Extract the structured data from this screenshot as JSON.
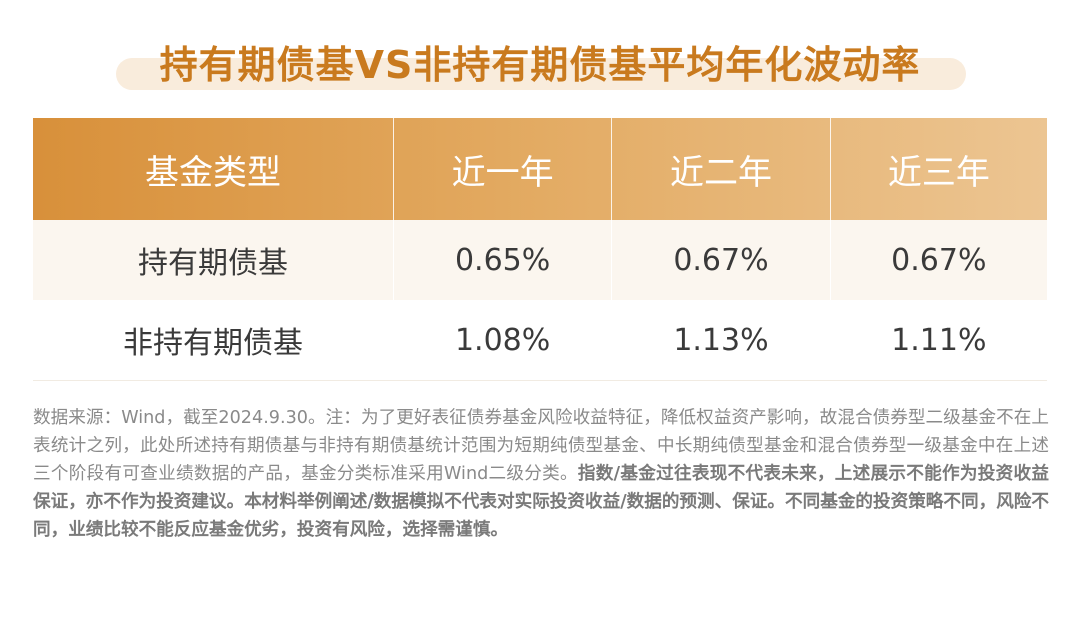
{
  "title": "持有期债基VS非持有期债基平均年化波动率",
  "chart_data": {
    "type": "table",
    "title": "持有期债基VS非持有期债基平均年化波动率",
    "columns": [
      "基金类型",
      "近一年",
      "近二年",
      "近三年"
    ],
    "rows": [
      {
        "label": "持有期债基",
        "values": [
          "0.65%",
          "0.67%",
          "0.67%"
        ]
      },
      {
        "label": "非持有期债基",
        "values": [
          "1.08%",
          "1.13%",
          "1.11%"
        ]
      }
    ]
  },
  "notes": {
    "source": "数据来源：Wind，截至2024.9.30。注：为了更好表征债券基金风险收益特征，降低权益资产影响，故混合债券型二级基金不在上表统计之列，此处所述持有期债基与非持有期债基统计范围为短期纯债型基金、中长期纯债型基金和混合债券型一级基金中在上述三个阶段有可查业绩数据的产品，基金分类标准采用Wind二级分类。",
    "disclaimer": "指数/基金过往表现不代表未来，上述展示不能作为投资收益保证，亦不作为投资建议。本材料举例阐述/数据模拟不代表对实际投资收益/数据的预测、保证。不同基金的投资策略不同，风险不同，业绩比较不能反应基金优劣，投资有风险，选择需谨慎。"
  }
}
